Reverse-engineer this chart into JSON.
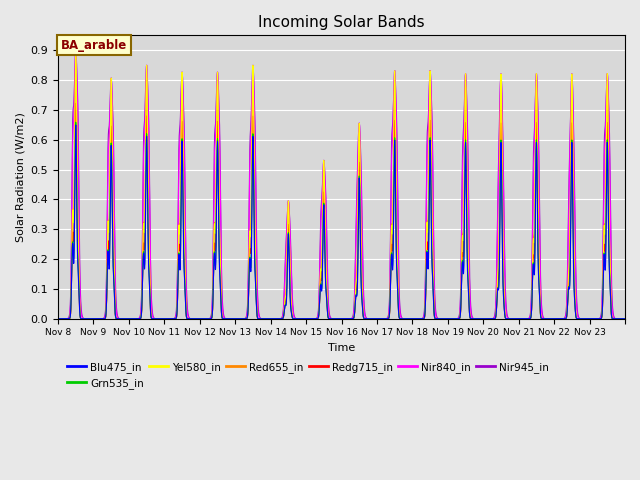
{
  "title": "Incoming Solar Bands",
  "xlabel": "Time",
  "ylabel": "Solar Radiation (W/m2)",
  "ylim": [
    0.0,
    0.95
  ],
  "yticks": [
    0.0,
    0.1,
    0.2,
    0.3,
    0.4,
    0.5,
    0.6,
    0.7,
    0.8,
    0.9
  ],
  "annotation_text": "BA_arable",
  "annotation_bg": "#ffffcc",
  "annotation_border": "#886600",
  "series": [
    {
      "label": "Blu475_in",
      "color": "#0000ff",
      "lw": 0.8
    },
    {
      "label": "Grn535_in",
      "color": "#00cc00",
      "lw": 0.8
    },
    {
      "label": "Yel580_in",
      "color": "#ffff00",
      "lw": 0.8
    },
    {
      "label": "Red655_in",
      "color": "#ff8800",
      "lw": 0.8
    },
    {
      "label": "Redg715_in",
      "color": "#ff0000",
      "lw": 0.8
    },
    {
      "label": "Nir840_in",
      "color": "#ff00ff",
      "lw": 0.8
    },
    {
      "label": "Nir945_in",
      "color": "#9900cc",
      "lw": 0.8
    }
  ],
  "day_peaks": [
    {
      "day": 0,
      "main": 0.9,
      "pre": 0.345,
      "post": 0.18
    },
    {
      "day": 1,
      "main": 0.805,
      "pre": 0.31,
      "post": 0.155
    },
    {
      "day": 2,
      "main": 0.848,
      "pre": 0.3,
      "post": 0.16
    },
    {
      "day": 3,
      "main": 0.825,
      "pre": 0.295,
      "post": 0.15
    },
    {
      "day": 4,
      "main": 0.825,
      "pre": 0.3,
      "post": 0.155
    },
    {
      "day": 5,
      "main": 0.848,
      "pre": 0.275,
      "post": 0.14
    },
    {
      "day": 6,
      "main": 0.395,
      "pre": 0.06,
      "post": 0.03
    },
    {
      "day": 7,
      "main": 0.53,
      "pre": 0.155,
      "post": 0.09
    },
    {
      "day": 8,
      "main": 0.655,
      "pre": 0.105,
      "post": 0.075
    },
    {
      "day": 9,
      "main": 0.83,
      "pre": 0.295,
      "post": 0.15
    },
    {
      "day": 10,
      "main": 0.83,
      "pre": 0.305,
      "post": 0.155
    },
    {
      "day": 11,
      "main": 0.82,
      "pre": 0.26,
      "post": 0.135
    },
    {
      "day": 12,
      "main": 0.82,
      "pre": 0.135,
      "post": 0.07
    },
    {
      "day": 13,
      "main": 0.82,
      "pre": 0.25,
      "post": 0.13
    },
    {
      "day": 14,
      "main": 0.82,
      "pre": 0.14,
      "post": 0.075
    },
    {
      "day": 15,
      "main": 0.82,
      "pre": 0.295,
      "post": 0.15
    }
  ],
  "num_days": 16,
  "start_day": 8,
  "x_tick_labels": [
    "Nov 8",
    "Nov 9",
    "Nov 10",
    "Nov 11",
    "Nov 12",
    "Nov 13",
    "Nov 14",
    "Nov 15",
    "Nov 16",
    "Nov 17",
    "Nov 18",
    "Nov 19",
    "Nov 20",
    "Nov 21",
    "Nov 22",
    "Nov 23"
  ],
  "plot_bg": "#d8d8d8",
  "fig_bg": "#e8e8e8"
}
